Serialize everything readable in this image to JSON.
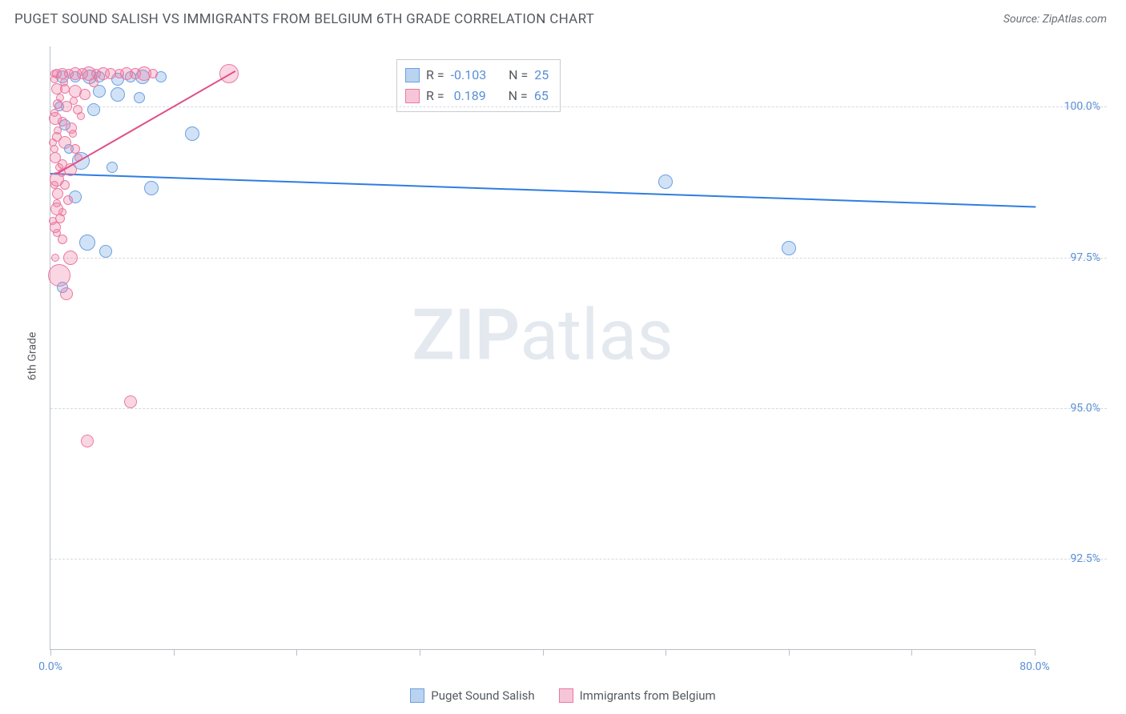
{
  "header": {
    "title": "PUGET SOUND SALISH VS IMMIGRANTS FROM BELGIUM 6TH GRADE CORRELATION CHART",
    "source": "Source: ZipAtlas.com"
  },
  "chart": {
    "type": "scatter",
    "ylabel": "6th Grade",
    "xlim": [
      0,
      80
    ],
    "ylim": [
      91,
      101
    ],
    "x_ticks": [
      0,
      10,
      20,
      30,
      40,
      50,
      60,
      70,
      80
    ],
    "x_tick_labels": {
      "0": "0.0%",
      "80": "80.0%"
    },
    "y_ticks": [
      92.5,
      95.0,
      97.5,
      100.0
    ],
    "y_tick_labels": [
      "92.5%",
      "95.0%",
      "97.5%",
      "100.0%"
    ],
    "grid_color": "#d6dadf",
    "axis_color": "#b9bfc7",
    "tick_label_color": "#5a8fd6",
    "background_color": "#ffffff",
    "watermark": {
      "bold": "ZIP",
      "light": "atlas",
      "color": "#e4e9f0"
    },
    "series": [
      {
        "name": "Puget Sound Salish",
        "fill": "rgba(107,160,224,0.30)",
        "stroke": "#6ba0e0",
        "swatch_fill": "#b9d3f0",
        "swatch_border": "#6ba0e0",
        "R": "-0.103",
        "N": "25",
        "trend": {
          "x1": 0,
          "y1": 98.9,
          "x2": 80,
          "y2": 98.35,
          "stroke": "#2f7de0",
          "width": 2
        },
        "points": [
          {
            "x": 1.0,
            "y": 100.5,
            "r": 8
          },
          {
            "x": 2.0,
            "y": 100.5,
            "r": 7
          },
          {
            "x": 3.2,
            "y": 100.5,
            "r": 9
          },
          {
            "x": 4.0,
            "y": 100.5,
            "r": 7
          },
          {
            "x": 5.5,
            "y": 100.45,
            "r": 8
          },
          {
            "x": 6.5,
            "y": 100.5,
            "r": 7
          },
          {
            "x": 7.5,
            "y": 100.5,
            "r": 9
          },
          {
            "x": 9.0,
            "y": 100.5,
            "r": 7
          },
          {
            "x": 4.0,
            "y": 100.25,
            "r": 8
          },
          {
            "x": 5.5,
            "y": 100.2,
            "r": 9
          },
          {
            "x": 7.2,
            "y": 100.15,
            "r": 7
          },
          {
            "x": 3.5,
            "y": 99.95,
            "r": 8
          },
          {
            "x": 1.2,
            "y": 99.7,
            "r": 7
          },
          {
            "x": 11.5,
            "y": 99.55,
            "r": 9
          },
          {
            "x": 2.5,
            "y": 99.1,
            "r": 11
          },
          {
            "x": 5.0,
            "y": 99.0,
            "r": 7
          },
          {
            "x": 8.2,
            "y": 98.65,
            "r": 9
          },
          {
            "x": 2.0,
            "y": 98.5,
            "r": 8
          },
          {
            "x": 3.0,
            "y": 97.75,
            "r": 10
          },
          {
            "x": 4.5,
            "y": 97.6,
            "r": 8
          },
          {
            "x": 1.0,
            "y": 97.0,
            "r": 7
          },
          {
            "x": 50.0,
            "y": 98.75,
            "r": 9
          },
          {
            "x": 60.0,
            "y": 97.65,
            "r": 9
          },
          {
            "x": 0.7,
            "y": 100.0,
            "r": 6
          },
          {
            "x": 1.5,
            "y": 99.3,
            "r": 6
          }
        ]
      },
      {
        "name": "Immigrants from Belgium",
        "fill": "rgba(236,120,160,0.30)",
        "stroke": "#ec78a0",
        "swatch_fill": "#f6c6d8",
        "swatch_border": "#ec78a0",
        "R": "0.189",
        "N": "65",
        "trend": {
          "x1": 0.5,
          "y1": 98.9,
          "x2": 15.0,
          "y2": 100.6,
          "stroke": "#e05088",
          "width": 2
        },
        "points": [
          {
            "x": 0.5,
            "y": 100.55,
            "r": 6
          },
          {
            "x": 1.0,
            "y": 100.55,
            "r": 7
          },
          {
            "x": 1.5,
            "y": 100.55,
            "r": 6
          },
          {
            "x": 2.0,
            "y": 100.55,
            "r": 8
          },
          {
            "x": 2.6,
            "y": 100.55,
            "r": 7
          },
          {
            "x": 3.1,
            "y": 100.55,
            "r": 9
          },
          {
            "x": 3.7,
            "y": 100.55,
            "r": 6
          },
          {
            "x": 4.3,
            "y": 100.55,
            "r": 8
          },
          {
            "x": 4.9,
            "y": 100.55,
            "r": 7
          },
          {
            "x": 5.6,
            "y": 100.55,
            "r": 6
          },
          {
            "x": 6.2,
            "y": 100.55,
            "r": 8
          },
          {
            "x": 6.9,
            "y": 100.55,
            "r": 7
          },
          {
            "x": 7.6,
            "y": 100.55,
            "r": 9
          },
          {
            "x": 8.3,
            "y": 100.55,
            "r": 6
          },
          {
            "x": 14.5,
            "y": 100.55,
            "r": 12
          },
          {
            "x": 0.5,
            "y": 100.3,
            "r": 7
          },
          {
            "x": 1.2,
            "y": 100.3,
            "r": 6
          },
          {
            "x": 2.0,
            "y": 100.25,
            "r": 8
          },
          {
            "x": 2.8,
            "y": 100.2,
            "r": 7
          },
          {
            "x": 0.6,
            "y": 100.05,
            "r": 6
          },
          {
            "x": 1.3,
            "y": 100.0,
            "r": 7
          },
          {
            "x": 2.2,
            "y": 99.95,
            "r": 6
          },
          {
            "x": 0.4,
            "y": 99.8,
            "r": 8
          },
          {
            "x": 1.0,
            "y": 99.75,
            "r": 6
          },
          {
            "x": 1.7,
            "y": 99.65,
            "r": 7
          },
          {
            "x": 0.5,
            "y": 99.5,
            "r": 6
          },
          {
            "x": 1.2,
            "y": 99.4,
            "r": 8
          },
          {
            "x": 2.0,
            "y": 99.3,
            "r": 6
          },
          {
            "x": 0.4,
            "y": 99.15,
            "r": 7
          },
          {
            "x": 1.0,
            "y": 99.05,
            "r": 6
          },
          {
            "x": 1.6,
            "y": 98.95,
            "r": 8
          },
          {
            "x": 0.5,
            "y": 98.8,
            "r": 9
          },
          {
            "x": 1.2,
            "y": 98.7,
            "r": 6
          },
          {
            "x": 0.6,
            "y": 98.55,
            "r": 7
          },
          {
            "x": 1.4,
            "y": 98.45,
            "r": 6
          },
          {
            "x": 0.5,
            "y": 98.3,
            "r": 8
          },
          {
            "x": 0.8,
            "y": 98.15,
            "r": 6
          },
          {
            "x": 0.4,
            "y": 98.0,
            "r": 7
          },
          {
            "x": 1.0,
            "y": 97.8,
            "r": 6
          },
          {
            "x": 1.6,
            "y": 97.5,
            "r": 9
          },
          {
            "x": 0.7,
            "y": 97.2,
            "r": 14
          },
          {
            "x": 1.3,
            "y": 96.9,
            "r": 8
          },
          {
            "x": 6.5,
            "y": 95.1,
            "r": 8
          },
          {
            "x": 3.0,
            "y": 94.45,
            "r": 8
          },
          {
            "x": 0.3,
            "y": 100.45,
            "r": 5
          },
          {
            "x": 0.8,
            "y": 100.15,
            "r": 5
          },
          {
            "x": 0.3,
            "y": 99.9,
            "r": 5
          },
          {
            "x": 0.6,
            "y": 99.6,
            "r": 5
          },
          {
            "x": 0.3,
            "y": 99.3,
            "r": 5
          },
          {
            "x": 0.7,
            "y": 99.0,
            "r": 5
          },
          {
            "x": 0.3,
            "y": 98.7,
            "r": 5
          },
          {
            "x": 0.5,
            "y": 98.4,
            "r": 5
          },
          {
            "x": 0.3,
            "y": 100.55,
            "r": 5
          },
          {
            "x": 3.5,
            "y": 100.4,
            "r": 6
          },
          {
            "x": 2.5,
            "y": 99.85,
            "r": 5
          },
          {
            "x": 1.8,
            "y": 99.55,
            "r": 5
          },
          {
            "x": 2.3,
            "y": 99.15,
            "r": 5
          },
          {
            "x": 1.0,
            "y": 98.25,
            "r": 5
          },
          {
            "x": 0.4,
            "y": 97.5,
            "r": 5
          },
          {
            "x": 1.1,
            "y": 100.4,
            "r": 5
          },
          {
            "x": 1.9,
            "y": 100.1,
            "r": 5
          },
          {
            "x": 0.2,
            "y": 99.4,
            "r": 5
          },
          {
            "x": 0.9,
            "y": 98.9,
            "r": 5
          },
          {
            "x": 0.2,
            "y": 98.1,
            "r": 5
          },
          {
            "x": 0.5,
            "y": 97.9,
            "r": 5
          }
        ]
      }
    ]
  },
  "legend_stats": {
    "R_label": "R =",
    "N_label": "N ="
  },
  "bottom_legend": [
    {
      "label": "Puget Sound Salish"
    },
    {
      "label": "Immigrants from Belgium"
    }
  ]
}
